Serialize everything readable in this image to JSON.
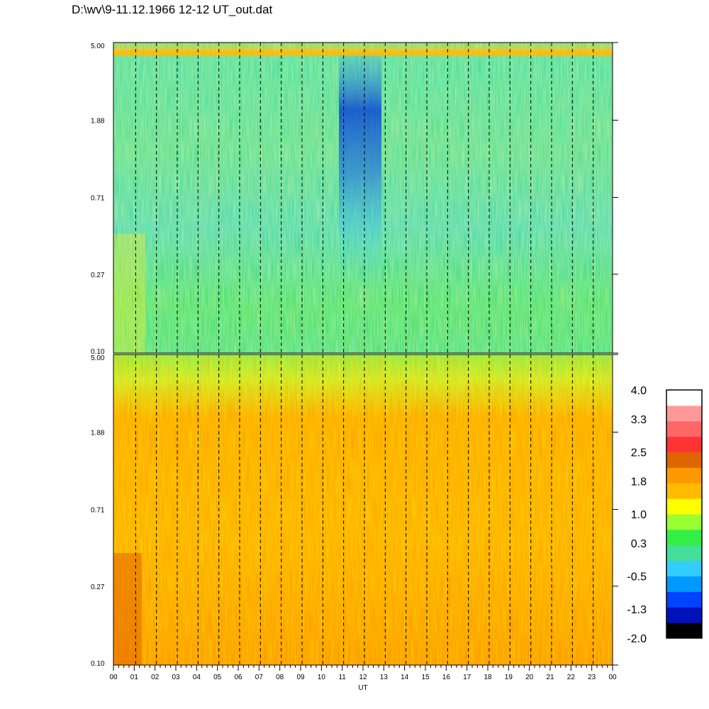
{
  "title": "D:\\wv\\9-11.12.1966  12-12 UT_out.dat",
  "chart_data": {
    "type": "heatmap",
    "panels": [
      {
        "name": "",
        "ytick_labels": [
          "5.00",
          "1.88",
          "0.71",
          "0.27",
          "0.10"
        ],
        "ylim": [
          0.1,
          5.0
        ],
        "yscale": "log",
        "dominant_range": [
          -0.5,
          1.0
        ],
        "features": "mostly green-cyan values; depletion down to about -1.3 between 11 and 13 UT above 0.71"
      },
      {
        "name": "",
        "ytick_labels": [
          "5.00",
          "1.88",
          "0.71",
          "0.27",
          "0.10"
        ],
        "ylim": [
          0.1,
          5.0
        ],
        "yscale": "log",
        "dominant_range": [
          1.0,
          2.5
        ],
        "features": "mostly orange-yellow values; higher near bottom-left"
      }
    ],
    "xlabel": "UT",
    "xtick_labels": [
      "00",
      "01",
      "02",
      "03",
      "04",
      "05",
      "06",
      "07",
      "08",
      "09",
      "10",
      "11",
      "12",
      "13",
      "14",
      "15",
      "16",
      "17",
      "18",
      "19",
      "20",
      "21",
      "22",
      "23",
      "00"
    ],
    "xlim": [
      0,
      24
    ],
    "colorbar": {
      "tick_labels": [
        "4.0",
        "3.3",
        "2.5",
        "1.8",
        "1.0",
        "0.3",
        "-0.5",
        "-1.3",
        "-2.0"
      ],
      "range": [
        -2.0,
        4.0
      ],
      "colors": [
        "#000000",
        "#0011bb",
        "#0044ff",
        "#0099ff",
        "#33ccff",
        "#44dd99",
        "#33ee44",
        "#99ff33",
        "#ffff00",
        "#ffbb00",
        "#ff9900",
        "#dd6600",
        "#ff3333",
        "#ff6666",
        "#ff9999",
        "#ffffff"
      ]
    },
    "grid": "vertical dashed lines at each hour"
  }
}
